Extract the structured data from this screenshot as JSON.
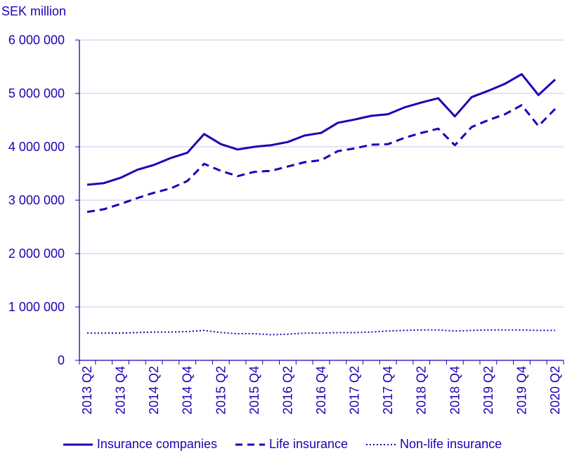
{
  "chart_data": {
    "type": "line",
    "title": "",
    "ylabel": "SEK million",
    "xlabel": "",
    "ylim": [
      0,
      6000000
    ],
    "yticks": [
      "0",
      "1 000 000",
      "2 000 000",
      "3 000 000",
      "4 000 000",
      "5 000 000",
      "6 000 000"
    ],
    "ytick_values": [
      0,
      1000000,
      2000000,
      3000000,
      4000000,
      5000000,
      6000000
    ],
    "grid": true,
    "legend": "bottom",
    "color": "#1e00b4",
    "x": [
      "2013 Q2",
      "2013 Q3",
      "2013 Q4",
      "2014 Q1",
      "2014 Q2",
      "2014 Q3",
      "2014 Q4",
      "2015 Q1",
      "2015 Q2",
      "2015 Q3",
      "2015 Q4",
      "2016 Q1",
      "2016 Q2",
      "2016 Q3",
      "2016 Q4",
      "2017 Q1",
      "2017 Q2",
      "2017 Q3",
      "2017 Q4",
      "2018 Q1",
      "2018 Q2",
      "2018 Q3",
      "2018 Q4",
      "2019 Q1",
      "2019 Q2",
      "2019 Q3",
      "2019 Q4",
      "2020 Q1",
      "2020 Q2"
    ],
    "xtick_labels": [
      "2013 Q2",
      "2013 Q4",
      "2014 Q2",
      "2014 Q4",
      "2015 Q2",
      "2015 Q4",
      "2016 Q2",
      "2016 Q4",
      "2017 Q2",
      "2017 Q4",
      "2018 Q2",
      "2018 Q4",
      "2019 Q2",
      "2019 Q4",
      "2020 Q2"
    ],
    "series": [
      {
        "name": "Insurance companies",
        "style": "solid",
        "values": [
          3290000,
          3320000,
          3420000,
          3570000,
          3660000,
          3790000,
          3890000,
          4240000,
          4050000,
          3950000,
          4000000,
          4030000,
          4090000,
          4210000,
          4260000,
          4450000,
          4510000,
          4580000,
          4610000,
          4740000,
          4830000,
          4910000,
          4570000,
          4930000,
          5050000,
          5180000,
          5360000,
          4970000,
          5260000
        ]
      },
      {
        "name": "Life insurance",
        "style": "dashed",
        "values": [
          2780000,
          2830000,
          2930000,
          3040000,
          3140000,
          3220000,
          3360000,
          3680000,
          3550000,
          3450000,
          3530000,
          3550000,
          3630000,
          3710000,
          3750000,
          3920000,
          3970000,
          4040000,
          4050000,
          4170000,
          4260000,
          4340000,
          4030000,
          4370000,
          4500000,
          4610000,
          4780000,
          4390000,
          4710000
        ]
      },
      {
        "name": "Non-life insurance",
        "style": "dotted",
        "values": [
          510000,
          510000,
          510000,
          520000,
          530000,
          530000,
          540000,
          560000,
          520000,
          500000,
          500000,
          480000,
          490000,
          510000,
          510000,
          520000,
          520000,
          530000,
          550000,
          560000,
          570000,
          570000,
          550000,
          560000,
          570000,
          570000,
          570000,
          560000,
          560000
        ]
      }
    ]
  }
}
